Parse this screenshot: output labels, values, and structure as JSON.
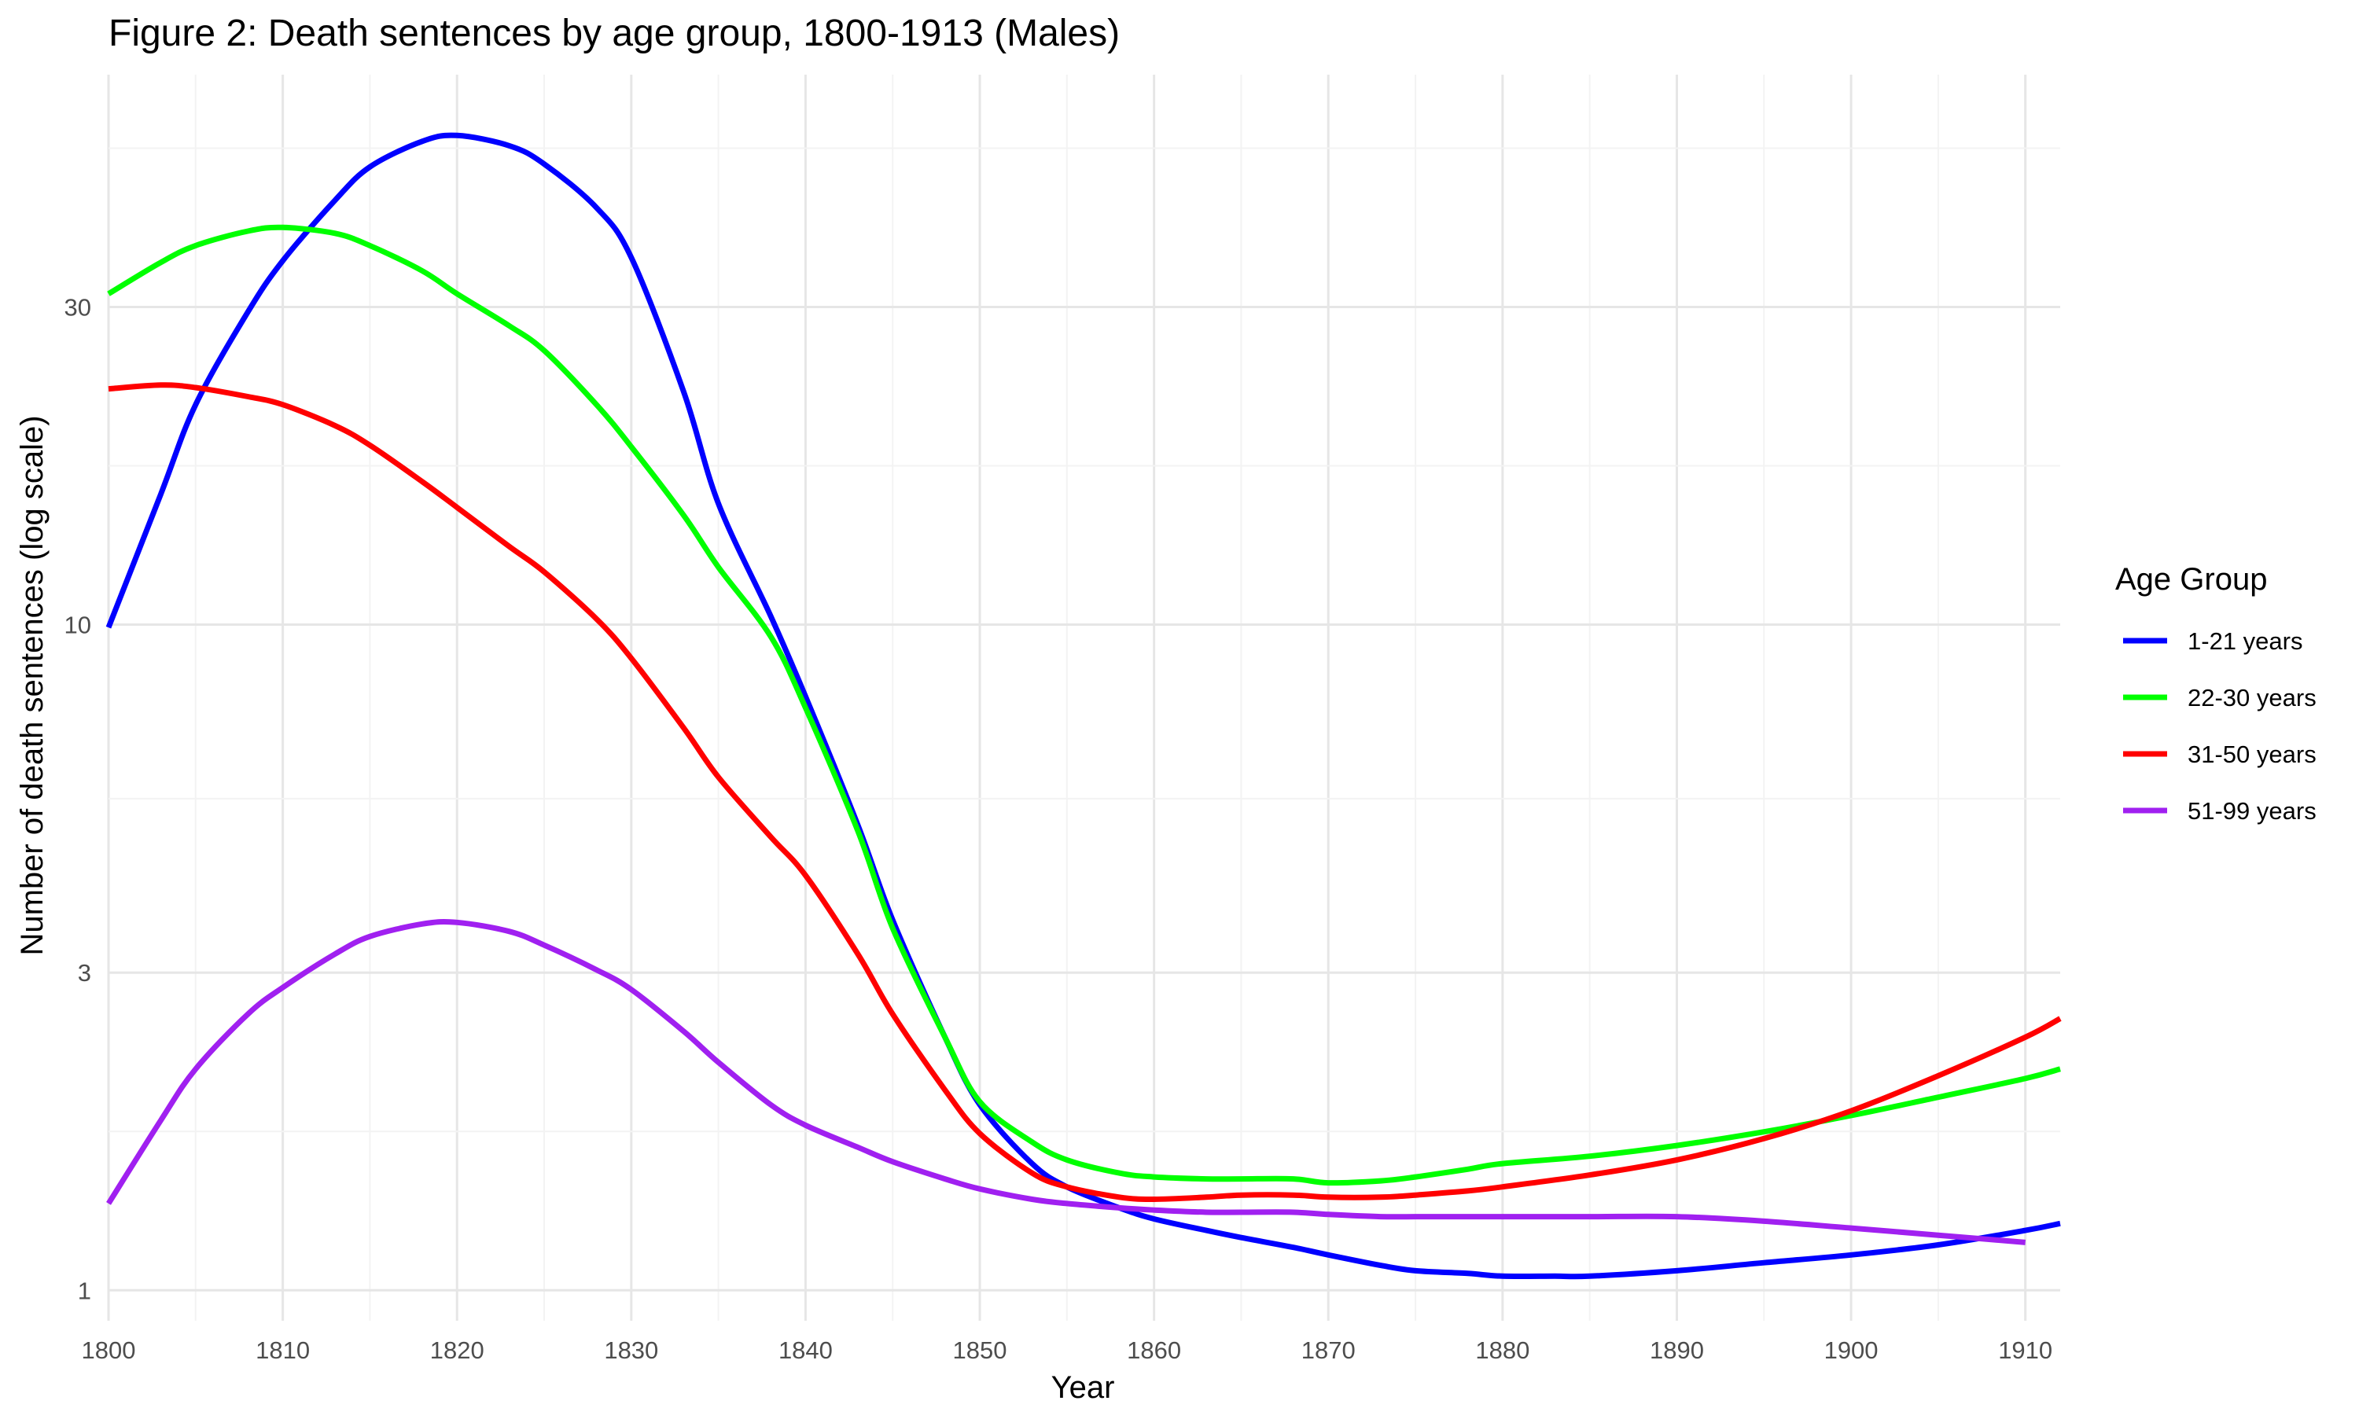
{
  "chart_data": {
    "type": "line",
    "title": "Figure 2: Death sentences by age group, 1800-1913 (Males)",
    "xlabel": "Year",
    "ylabel": "Number of death sentences (log scale)",
    "xlim": [
      1800,
      1912
    ],
    "ylim": [
      0.9,
      67
    ],
    "y_scale": "log",
    "x_ticks": [
      1800,
      1810,
      1820,
      1830,
      1840,
      1850,
      1860,
      1870,
      1880,
      1890,
      1900,
      1910
    ],
    "y_ticks": [
      1,
      3,
      10,
      30
    ],
    "grid": true,
    "legend": {
      "title": "Age Group",
      "position": "right"
    },
    "series": [
      {
        "name": "1-21 years",
        "color": "#0000FF",
        "x": [
          1800,
          1803,
          1805,
          1808,
          1810,
          1813,
          1815,
          1818,
          1820,
          1823,
          1825,
          1828,
          1830,
          1833,
          1835,
          1838,
          1840,
          1843,
          1845,
          1848,
          1850,
          1853,
          1855,
          1858,
          1860,
          1863,
          1865,
          1868,
          1870,
          1873,
          1875,
          1878,
          1880,
          1883,
          1885,
          1890,
          1895,
          1900,
          1905,
          1910,
          1912
        ],
        "y": [
          9.9,
          15.7,
          21.4,
          29.5,
          35.2,
          43.4,
          48.7,
          53.2,
          54.3,
          52.4,
          49.2,
          42.3,
          35.6,
          22.4,
          15.2,
          10.3,
          7.8,
          5.0,
          3.6,
          2.4,
          1.9,
          1.55,
          1.43,
          1.33,
          1.28,
          1.23,
          1.2,
          1.16,
          1.13,
          1.09,
          1.07,
          1.06,
          1.05,
          1.05,
          1.05,
          1.07,
          1.1,
          1.13,
          1.17,
          1.23,
          1.26
        ]
      },
      {
        "name": "22-30 years",
        "color": "#00FF00",
        "x": [
          1800,
          1803,
          1805,
          1808,
          1810,
          1813,
          1815,
          1818,
          1820,
          1823,
          1825,
          1828,
          1830,
          1833,
          1835,
          1838,
          1840,
          1843,
          1845,
          1848,
          1850,
          1853,
          1855,
          1858,
          1860,
          1863,
          1865,
          1868,
          1870,
          1873,
          1875,
          1878,
          1880,
          1885,
          1890,
          1895,
          1900,
          1905,
          1910,
          1912
        ],
        "y": [
          31.4,
          35.0,
          37.1,
          39.0,
          39.5,
          38.7,
          37.1,
          34.0,
          31.4,
          28.1,
          25.8,
          21.4,
          18.5,
          14.6,
          12.2,
          9.6,
          7.5,
          4.9,
          3.5,
          2.4,
          1.92,
          1.67,
          1.57,
          1.5,
          1.48,
          1.47,
          1.47,
          1.47,
          1.45,
          1.46,
          1.48,
          1.52,
          1.55,
          1.59,
          1.65,
          1.73,
          1.83,
          1.95,
          2.08,
          2.15
        ]
      },
      {
        "name": "31-50 years",
        "color": "#FF0000",
        "x": [
          1800,
          1803,
          1805,
          1808,
          1810,
          1813,
          1815,
          1818,
          1820,
          1823,
          1825,
          1828,
          1830,
          1833,
          1835,
          1838,
          1840,
          1843,
          1845,
          1848,
          1850,
          1853,
          1855,
          1858,
          1860,
          1863,
          1865,
          1868,
          1870,
          1873,
          1875,
          1878,
          1880,
          1885,
          1890,
          1895,
          1900,
          1905,
          1910,
          1912
        ],
        "y": [
          22.6,
          22.9,
          22.7,
          22.0,
          21.4,
          19.9,
          18.6,
          16.4,
          15.0,
          13.1,
          12.0,
          10.2,
          8.9,
          7.0,
          5.9,
          4.8,
          4.2,
          3.2,
          2.6,
          2.0,
          1.72,
          1.5,
          1.43,
          1.38,
          1.37,
          1.38,
          1.39,
          1.39,
          1.38,
          1.38,
          1.39,
          1.41,
          1.43,
          1.49,
          1.57,
          1.69,
          1.86,
          2.1,
          2.4,
          2.56
        ]
      },
      {
        "name": "51-99 years",
        "color": "#A020F0",
        "x": [
          1800,
          1803,
          1805,
          1808,
          1810,
          1813,
          1815,
          1818,
          1820,
          1823,
          1825,
          1828,
          1830,
          1833,
          1835,
          1838,
          1840,
          1843,
          1845,
          1848,
          1850,
          1853,
          1855,
          1858,
          1860,
          1863,
          1865,
          1868,
          1870,
          1873,
          1875,
          1878,
          1880,
          1885,
          1890,
          1895,
          1900,
          1905,
          1910
        ],
        "y": [
          1.35,
          1.8,
          2.15,
          2.6,
          2.85,
          3.2,
          3.4,
          3.55,
          3.57,
          3.46,
          3.3,
          3.03,
          2.83,
          2.45,
          2.2,
          1.9,
          1.77,
          1.64,
          1.56,
          1.47,
          1.42,
          1.37,
          1.35,
          1.33,
          1.32,
          1.31,
          1.31,
          1.31,
          1.3,
          1.29,
          1.29,
          1.29,
          1.29,
          1.29,
          1.29,
          1.27,
          1.24,
          1.21,
          1.18
        ]
      }
    ]
  }
}
